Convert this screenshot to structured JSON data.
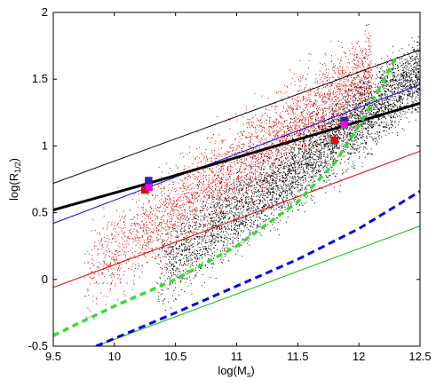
{
  "chart_data": {
    "type": "scatter",
    "xlabel": "log(M",
    "xlabel_sub": "s",
    "xlabel_end": ")",
    "ylabel": "log(R",
    "ylabel_sub": "1/2",
    "ylabel_end": ")",
    "xlim": [
      9.5,
      12.5
    ],
    "ylim": [
      -0.5,
      2
    ],
    "grid": false,
    "x_ticks": [
      {
        "v": 9.5,
        "label": "9.5"
      },
      {
        "v": 10,
        "label": "10"
      },
      {
        "v": 10.5,
        "label": "10.5"
      },
      {
        "v": 11,
        "label": "11"
      },
      {
        "v": 11.5,
        "label": "11.5"
      },
      {
        "v": 12,
        "label": "12"
      },
      {
        "v": 12.5,
        "label": "12.5"
      }
    ],
    "y_ticks": [
      {
        "v": -0.5,
        "label": "-0.5"
      },
      {
        "v": 0,
        "label": "0"
      },
      {
        "v": 0.5,
        "label": "0.5"
      },
      {
        "v": 1,
        "label": "1"
      },
      {
        "v": 1.5,
        "label": "1.5"
      },
      {
        "v": 2,
        "label": "2"
      }
    ],
    "scatter_clouds": [
      {
        "color": "#e00000",
        "count": 3500,
        "x_range": [
          9.75,
          12.1
        ],
        "intercept": -6.3,
        "slope": 0.65,
        "spread": 0.16
      },
      {
        "color": "#000000",
        "count": 4500,
        "x_range": [
          10.35,
          12.5
        ],
        "intercept": -7.2,
        "slope": 0.7,
        "spread": 0.14
      }
    ],
    "lines": [
      {
        "color": "#000000",
        "width": 1,
        "dash": "",
        "points": [
          [
            9.5,
            0.72
          ],
          [
            12.5,
            1.72
          ]
        ]
      },
      {
        "color": "#0000dd",
        "width": 1,
        "dash": "",
        "points": [
          [
            9.5,
            0.42
          ],
          [
            12.5,
            1.46
          ]
        ]
      },
      {
        "color": "#000000",
        "width": 3,
        "dash": "",
        "points": [
          [
            9.5,
            0.52
          ],
          [
            10.28,
            0.72
          ],
          [
            11.88,
            1.15
          ],
          [
            12.5,
            1.32
          ]
        ]
      },
      {
        "color": "#e00000",
        "width": 1,
        "dash": "",
        "points": [
          [
            9.5,
            -0.06
          ],
          [
            12.5,
            0.96
          ]
        ]
      },
      {
        "color": "#00bb00",
        "width": 1,
        "dash": "",
        "points": [
          [
            9.85,
            -0.5
          ],
          [
            12.5,
            0.4
          ]
        ]
      },
      {
        "color": "#33dd33",
        "width": 3.5,
        "dash": "7,5",
        "points": [
          [
            9.5,
            -0.42
          ],
          [
            10.0,
            -0.2
          ],
          [
            10.5,
            0.0
          ],
          [
            11.0,
            0.25
          ],
          [
            11.5,
            0.58
          ],
          [
            11.8,
            0.87
          ],
          [
            12.0,
            1.15
          ],
          [
            12.15,
            1.4
          ],
          [
            12.3,
            1.66
          ]
        ]
      },
      {
        "color": "#0000ee",
        "width": 3,
        "dash": "8,5",
        "points": [
          [
            9.85,
            -0.5
          ],
          [
            10.5,
            -0.25
          ],
          [
            11.0,
            -0.05
          ],
          [
            11.5,
            0.15
          ],
          [
            12.0,
            0.38
          ],
          [
            12.5,
            0.66
          ]
        ]
      }
    ],
    "markers": [
      {
        "x": 10.28,
        "y": 0.74,
        "color": "#2222cc"
      },
      {
        "x": 10.25,
        "y": 0.67,
        "color": "#ff0000"
      },
      {
        "x": 10.28,
        "y": 0.69,
        "color": "#ff00ff"
      },
      {
        "x": 11.88,
        "y": 1.19,
        "color": "#2222cc"
      },
      {
        "x": 11.8,
        "y": 1.04,
        "color": "#ff0000"
      },
      {
        "x": 11.88,
        "y": 1.16,
        "color": "#ff00ff"
      }
    ]
  }
}
